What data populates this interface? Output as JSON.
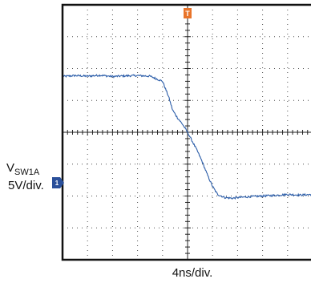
{
  "chart_data": {
    "type": "line",
    "title": "",
    "xlabel": "4ns/div.",
    "ylabel_main": "V",
    "ylabel_sub": "SW1A",
    "ylabel_scale": "5V/div.",
    "trigger_marker": "T",
    "channel_marker": "1",
    "x_divisions": 10,
    "y_divisions": 8,
    "x_range_div": [
      -5,
      5
    ],
    "y_range_div": [
      -4,
      4
    ],
    "grid": true,
    "colors": {
      "trace": "#2a5ca8",
      "trigger": "#e8742a",
      "channel": "#2a4f9a",
      "grid": "#222222"
    },
    "series": [
      {
        "x": [
          -5.0,
          -4.5,
          -4.0,
          -3.5,
          -3.0,
          -2.5,
          -2.0,
          -1.5,
          -1.0,
          -0.75,
          -0.6,
          -0.4,
          -0.2,
          0.0,
          0.2,
          0.4,
          0.6,
          0.8,
          1.0,
          1.2,
          1.5,
          1.8,
          2.0,
          2.5,
          3.0,
          3.5,
          4.0,
          4.5,
          5.0
        ],
        "values": [
          1.75,
          1.78,
          1.76,
          1.79,
          1.75,
          1.77,
          1.78,
          1.76,
          1.6,
          1.1,
          0.7,
          0.45,
          0.25,
          0.0,
          -0.3,
          -0.6,
          -0.95,
          -1.35,
          -1.7,
          -1.95,
          -2.05,
          -2.07,
          -2.05,
          -2.02,
          -2.0,
          -1.98,
          -1.95,
          -1.97,
          -1.95
        ]
      }
    ]
  }
}
